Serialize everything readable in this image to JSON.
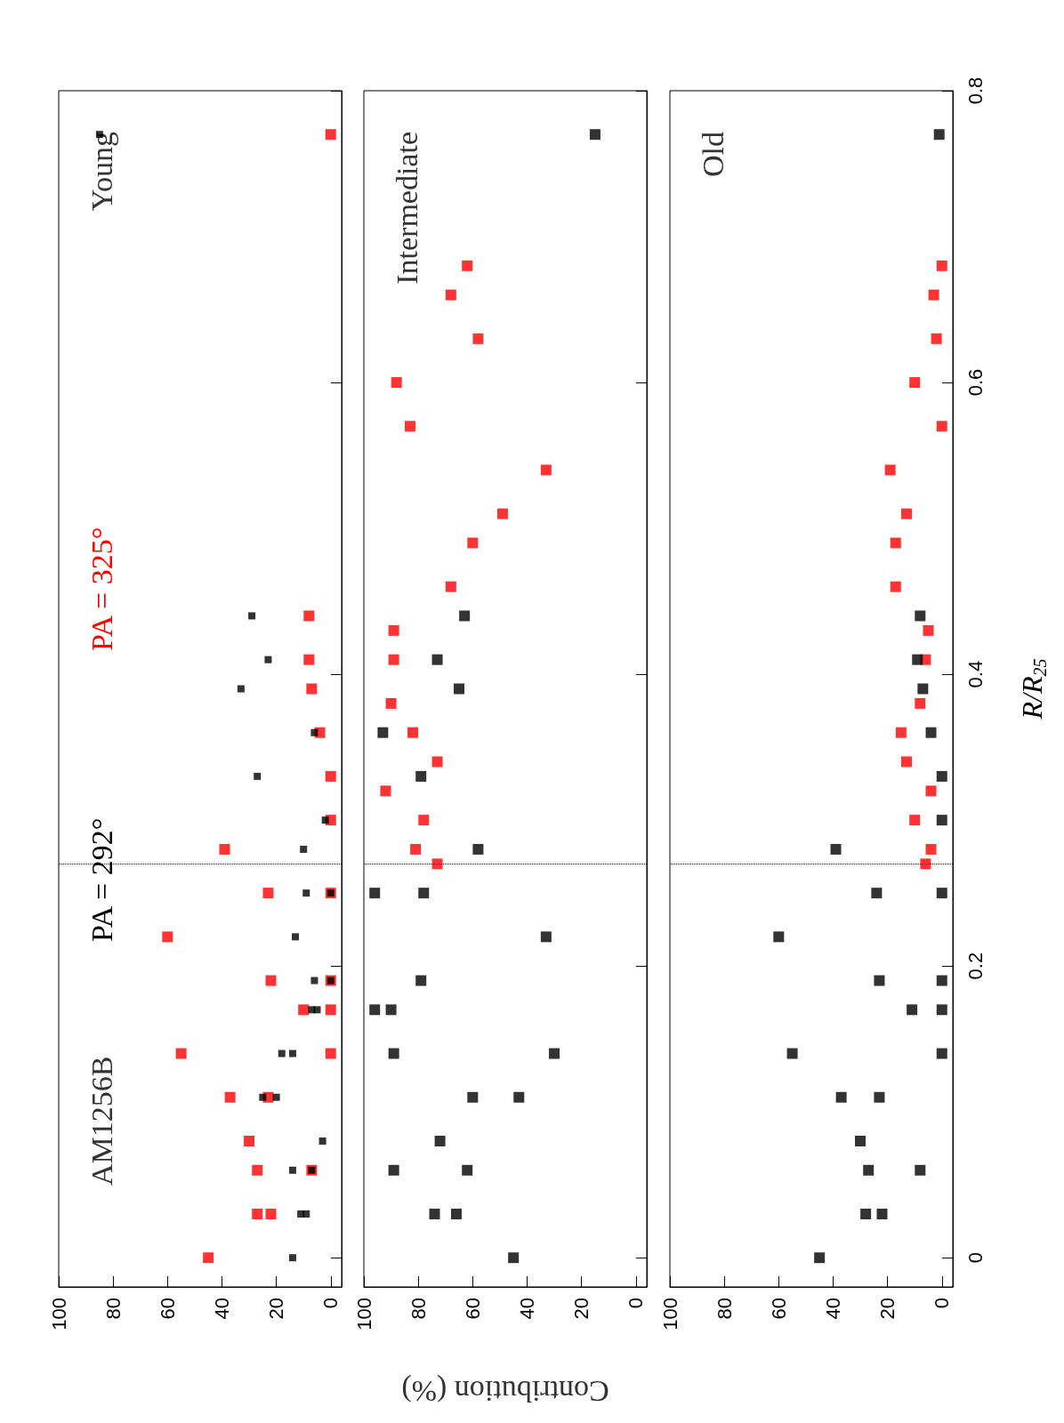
{
  "chart_data": [
    {
      "type": "scatter",
      "annotations": [
        "AM1256B",
        "Young"
      ],
      "marker": "square",
      "grid": false,
      "legend": false,
      "tick_labels": "x",
      "xlim": [
        100,
        -4
      ],
      "xticks": [
        0,
        20,
        40,
        60,
        80,
        100
      ],
      "ylim": [
        -0.02,
        0.8
      ],
      "yticks": [
        0,
        0.2,
        0.4,
        0.6,
        0.8
      ],
      "ref_lines": [
        {
          "axis": "y",
          "value": 0.27,
          "line_style": "dotted",
          "color": "#000000"
        }
      ],
      "series": [
        {
          "name": "PA = 325°",
          "color": "#ff0000",
          "values": [
            0,
            0.03,
            0.03,
            0.06,
            0.06,
            0.08,
            0.11,
            0.11,
            0.14,
            0.14,
            0.17,
            0.17,
            0.19,
            0.19,
            0.22,
            0.25,
            0.25,
            0.28,
            0.3,
            0.33,
            0.36,
            0.39,
            0.41,
            0.44,
            0.77
          ],
          "x": [
            45,
            27,
            22,
            27,
            7,
            30,
            37,
            23,
            55,
            0,
            10,
            0,
            22,
            0,
            60,
            23,
            0,
            39,
            0,
            0,
            4,
            7,
            8,
            8,
            0
          ]
        },
        {
          "name": "PA = 292°",
          "color": "#000000",
          "values": [
            0,
            0.03,
            0.03,
            0.06,
            0.06,
            0.08,
            0.11,
            0.11,
            0.14,
            0.14,
            0.17,
            0.17,
            0.19,
            0.19,
            0.22,
            0.25,
            0.25,
            0.28,
            0.3,
            0.33,
            0.36,
            0.39,
            0.41,
            0.44,
            0.77
          ],
          "x": [
            14,
            11,
            9,
            14,
            7,
            3,
            25,
            20,
            18,
            14,
            7,
            5,
            6,
            0,
            13,
            9,
            0,
            10,
            2,
            27,
            6,
            33,
            23,
            29,
            85
          ]
        }
      ]
    },
    {
      "type": "scatter",
      "annotations": [
        "Intermediate"
      ],
      "xlabel": "Contribution (%)",
      "marker": "square",
      "grid": false,
      "legend": false,
      "tick_labels": "x",
      "xlim": [
        100,
        -4
      ],
      "xticks": [
        0,
        20,
        40,
        60,
        80,
        100
      ],
      "ylim": [
        -0.02,
        0.8
      ],
      "yticks": [
        0,
        0.2,
        0.4,
        0.6,
        0.8
      ],
      "ref_lines": [
        {
          "axis": "y",
          "value": 0.27,
          "line_style": "dotted",
          "color": "#000000"
        }
      ],
      "series": [
        {
          "color": "#ff0000",
          "values": [
            0.27,
            0.28,
            0.3,
            0.32,
            0.34,
            0.36,
            0.38,
            0.41,
            0.43,
            0.46,
            0.49,
            0.51,
            0.54,
            0.57,
            0.6,
            0.63,
            0.66,
            0.68
          ],
          "x": [
            73,
            81,
            78,
            92,
            73,
            82,
            90,
            89,
            89,
            68,
            60,
            49,
            33,
            83,
            88,
            58,
            68,
            62
          ]
        },
        {
          "color": "#000000",
          "values": [
            0,
            0.03,
            0.03,
            0.06,
            0.06,
            0.08,
            0.11,
            0.11,
            0.14,
            0.14,
            0.17,
            0.17,
            0.19,
            0.22,
            0.25,
            0.25,
            0.28,
            0.33,
            0.36,
            0.39,
            0.41,
            0.44,
            0.77
          ],
          "x": [
            45,
            74,
            66,
            89,
            62,
            72,
            60,
            43,
            89,
            30,
            96,
            90,
            79,
            33,
            96,
            78,
            58,
            79,
            93,
            65,
            73,
            63,
            15
          ]
        }
      ]
    },
    {
      "type": "scatter",
      "annotations": [
        "Old"
      ],
      "ylabel": "R/R$_{25}$",
      "marker": "square",
      "grid": false,
      "legend": false,
      "xlim": [
        100,
        -4
      ],
      "xticks": [
        0,
        20,
        40,
        60,
        80,
        100
      ],
      "ylim": [
        -0.02,
        0.8
      ],
      "yticks": [
        0,
        0.2,
        0.4,
        0.6,
        0.8
      ],
      "ref_lines": [
        {
          "axis": "y",
          "value": 0.27,
          "line_style": "dotted",
          "color": "#000000"
        }
      ],
      "series": [
        {
          "color": "#ff0000",
          "values": [
            0.27,
            0.28,
            0.3,
            0.32,
            0.34,
            0.36,
            0.38,
            0.41,
            0.43,
            0.46,
            0.49,
            0.51,
            0.54,
            0.57,
            0.6,
            0.63,
            0.66,
            0.68
          ],
          "x": [
            6,
            4,
            10,
            4,
            13,
            15,
            8,
            6,
            5,
            17,
            17,
            13,
            19,
            0,
            10,
            2,
            3,
            0
          ]
        },
        {
          "color": "#000000",
          "values": [
            0,
            0.03,
            0.03,
            0.06,
            0.06,
            0.08,
            0.11,
            0.11,
            0.14,
            0.14,
            0.17,
            0.17,
            0.19,
            0.19,
            0.22,
            0.25,
            0.25,
            0.28,
            0.3,
            0.33,
            0.36,
            0.39,
            0.41,
            0.44,
            0.77
          ],
          "x": [
            45,
            28,
            22,
            27,
            8,
            30,
            37,
            23,
            55,
            0,
            11,
            0,
            23,
            0,
            60,
            24,
            0,
            39,
            0,
            0,
            4,
            7,
            9,
            8,
            1
          ]
        }
      ]
    }
  ]
}
